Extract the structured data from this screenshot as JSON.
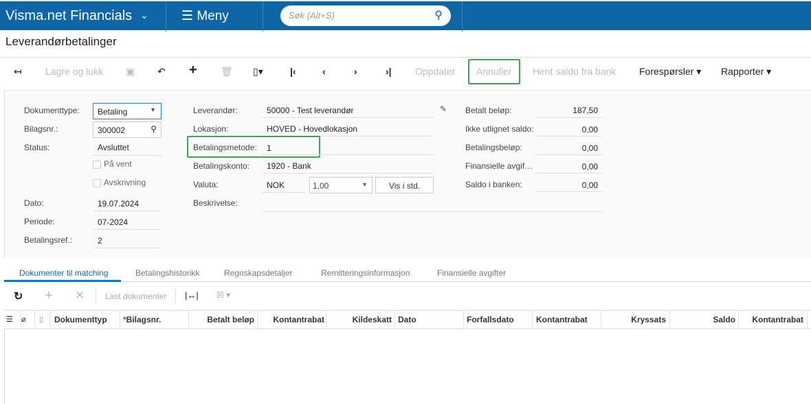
{
  "header": {
    "brand": "Visma.net Financials",
    "menu": "Meny",
    "search_placeholder": "Søk (Alt+S)"
  },
  "page_title": "Leverandørbetalinger",
  "toolbar": {
    "save_close": "Lagre og lukk",
    "update": "Oppdater",
    "cancel": "Annuller",
    "fetch_balance": "Hent saldo fra bank",
    "inquiries": "Forespørsler",
    "reports": "Rapporter"
  },
  "form": {
    "doc_type_label": "Dokumenttype:",
    "doc_type": "Betaling",
    "ref_nbr_label": "Bilagsnr.:",
    "ref_nbr": "300002",
    "status_label": "Status:",
    "status": "Avsluttet",
    "hold_label": "På vent",
    "writeoff_label": "Avskrivning",
    "date_label": "Dato:",
    "date": "19.07.2024",
    "period_label": "Periode:",
    "period": "07-2024",
    "payment_ref_label": "Betalingsref.:",
    "payment_ref": "2",
    "vendor_label": "Leverandør:",
    "vendor": "50000 - Test leverandør",
    "location_label": "Lokasjon:",
    "location": "HOVED - Hovedlokasjon",
    "payment_method_label": "Betalingsmetode:",
    "payment_method": "1",
    "cash_account_label": "Betalingskonto:",
    "cash_account": "1920 - Bank",
    "currency_label": "Valuta:",
    "currency": "NOK",
    "rate": "1,00",
    "view_base": "Vis i std.",
    "description_label": "Beskrivelse:",
    "paid_amount_label": "Betalt beløp:",
    "paid_amount": "187,50",
    "unapplied_label": "Ikke utlignet saldo:",
    "unapplied": "0,00",
    "payment_amount_label": "Betalingsbeløp:",
    "payment_amount": "0,00",
    "fin_charges_label": "Finansielle avgif…",
    "fin_charges": "0,00",
    "bank_balance_label": "Saldo i banken:",
    "bank_balance": "0,00"
  },
  "tabs": [
    "Dokumenter til matching",
    "Betalingshistorikk",
    "Regnskapsdetaljer",
    "Remitteringsinformasjon",
    "Finansielle avgifter"
  ],
  "grid_toolbar": {
    "load_docs": "Last dokumenter"
  },
  "columns": [
    "Dokumenttyp",
    "Bilagsnr.",
    "Betalt beløp",
    "Kontantrabat",
    "Kildeskatt",
    "Dato",
    "Forfallsdato",
    "Kontantrabat",
    "Kryssats",
    "Saldo",
    "Kontantrabat"
  ],
  "colors": {
    "header": "#0f66a6",
    "highlight": "#3aa655",
    "accent": "#0f78c8"
  }
}
